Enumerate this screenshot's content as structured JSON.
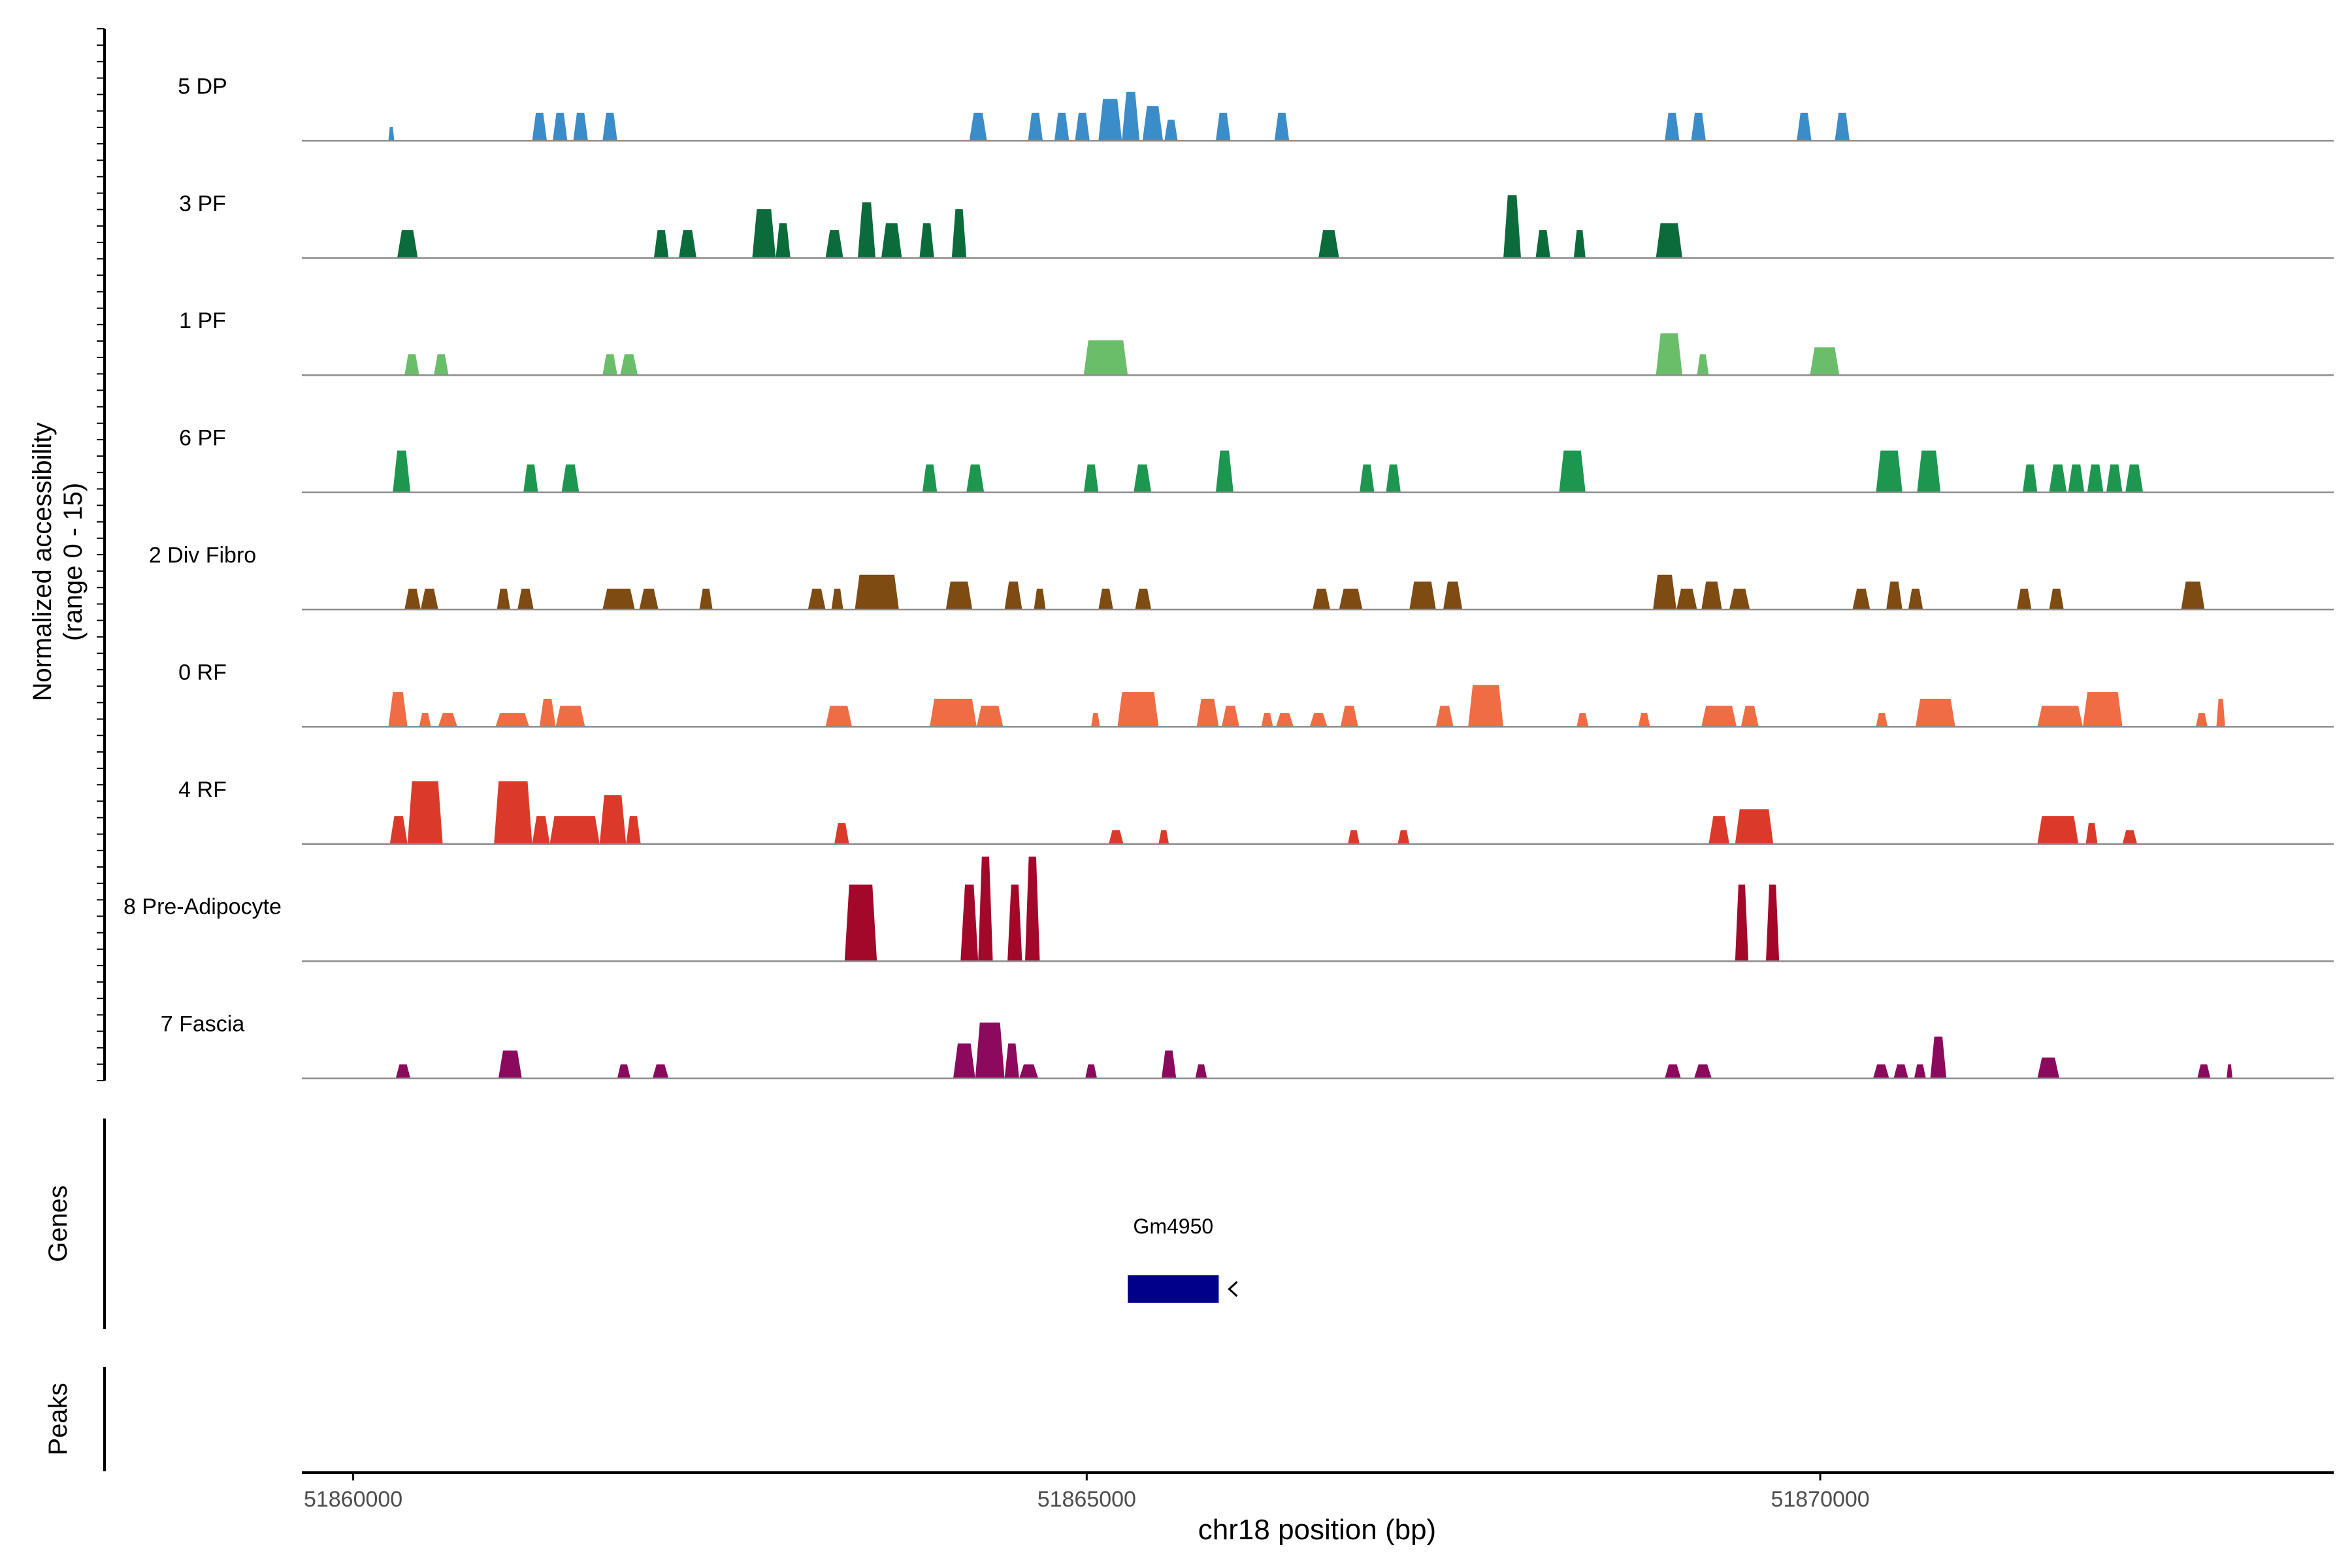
{
  "chart_data": {
    "type": "area",
    "chromosome": "chr18",
    "xlabel": "chr18 position (bp)",
    "ylabel_line1": "Normalized accessibility",
    "ylabel_line2": "(range 0 - 15)",
    "xlim": [
      51859650,
      51873500
    ],
    "ylim": [
      0,
      15
    ],
    "x_ticks": [
      51860000,
      51865000,
      51870000
    ],
    "x_tick_labels": [
      "51860000",
      "51865000",
      "51870000"
    ],
    "panel_labels": {
      "genes": "Genes",
      "peaks": "Peaks"
    },
    "series": [
      {
        "name": "5 DP",
        "color": "#3A8DC9",
        "peaks": [
          [
            51860240,
            51860280,
            2
          ],
          [
            51861220,
            51861320,
            4
          ],
          [
            51861360,
            51861460,
            4
          ],
          [
            51861500,
            51861600,
            4
          ],
          [
            51861700,
            51861800,
            4
          ],
          [
            51864200,
            51864320,
            4
          ],
          [
            51864600,
            51864700,
            4
          ],
          [
            51864780,
            51864880,
            4
          ],
          [
            51864920,
            51865020,
            4
          ],
          [
            51865080,
            51865240,
            6
          ],
          [
            51865240,
            51865360,
            7
          ],
          [
            51865380,
            51865520,
            5
          ],
          [
            51865530,
            51865620,
            3
          ],
          [
            51865880,
            51865980,
            4
          ],
          [
            51866280,
            51866380,
            4
          ],
          [
            51868940,
            51869040,
            4
          ],
          [
            51869120,
            51869220,
            4
          ],
          [
            51869840,
            51869940,
            4
          ],
          [
            51870100,
            51870200,
            4
          ]
        ]
      },
      {
        "name": "3 PF",
        "color": "#0B6B3A",
        "peaks": [
          [
            51860300,
            51860440,
            4
          ],
          [
            51862050,
            51862150,
            4
          ],
          [
            51862220,
            51862340,
            4
          ],
          [
            51862720,
            51862880,
            7
          ],
          [
            51862880,
            51862980,
            5
          ],
          [
            51863220,
            51863340,
            4
          ],
          [
            51863440,
            51863560,
            8
          ],
          [
            51863600,
            51863740,
            5
          ],
          [
            51863860,
            51863960,
            5
          ],
          [
            51864080,
            51864180,
            7
          ],
          [
            51866580,
            51866720,
            4
          ],
          [
            51867840,
            51867960,
            9
          ],
          [
            51868060,
            51868160,
            4
          ],
          [
            51868320,
            51868400,
            4
          ],
          [
            51868880,
            51869060,
            5
          ]
        ]
      },
      {
        "name": "1 PF",
        "color": "#6ABE6A",
        "peaks": [
          [
            51860350,
            51860450,
            3
          ],
          [
            51860550,
            51860650,
            3
          ],
          [
            51861700,
            51861800,
            3
          ],
          [
            51861820,
            51861940,
            3
          ],
          [
            51864980,
            51865280,
            5
          ],
          [
            51868880,
            51869060,
            6
          ],
          [
            51869160,
            51869240,
            3
          ],
          [
            51869930,
            51870130,
            4
          ]
        ]
      },
      {
        "name": "6 PF",
        "color": "#1D9650",
        "peaks": [
          [
            51860270,
            51860390,
            6
          ],
          [
            51861160,
            51861260,
            4
          ],
          [
            51861420,
            51861540,
            4
          ],
          [
            51863880,
            51863980,
            4
          ],
          [
            51864180,
            51864300,
            4
          ],
          [
            51864980,
            51865080,
            4
          ],
          [
            51865320,
            51865440,
            4
          ],
          [
            51865880,
            51866000,
            6
          ],
          [
            51866860,
            51866960,
            4
          ],
          [
            51867040,
            51867140,
            4
          ],
          [
            51868220,
            51868400,
            6
          ],
          [
            51870380,
            51870560,
            6
          ],
          [
            51870660,
            51870820,
            6
          ],
          [
            51871380,
            51871480,
            4
          ],
          [
            51871560,
            51871680,
            4
          ],
          [
            51871690,
            51871800,
            4
          ],
          [
            51871820,
            51871930,
            4
          ],
          [
            51871950,
            51872060,
            4
          ],
          [
            51872080,
            51872200,
            4
          ]
        ]
      },
      {
        "name": "2 Div Fibro",
        "color": "#7E4B12",
        "peaks": [
          [
            51860350,
            51860460,
            3
          ],
          [
            51860460,
            51860580,
            3
          ],
          [
            51860980,
            51861070,
            3
          ],
          [
            51861120,
            51861230,
            3
          ],
          [
            51861700,
            51861920,
            3
          ],
          [
            51861950,
            51862080,
            3
          ],
          [
            51862360,
            51862450,
            3
          ],
          [
            51863100,
            51863220,
            3
          ],
          [
            51863260,
            51863340,
            3
          ],
          [
            51863420,
            51863720,
            5
          ],
          [
            51864040,
            51864220,
            4
          ],
          [
            51864440,
            51864560,
            4
          ],
          [
            51864640,
            51864720,
            3
          ],
          [
            51865080,
            51865180,
            3
          ],
          [
            51865330,
            51865440,
            3
          ],
          [
            51866540,
            51866660,
            3
          ],
          [
            51866720,
            51866880,
            3
          ],
          [
            51867200,
            51867380,
            4
          ],
          [
            51867430,
            51867560,
            4
          ],
          [
            51868860,
            51869020,
            5
          ],
          [
            51869020,
            51869160,
            3
          ],
          [
            51869190,
            51869330,
            4
          ],
          [
            51869380,
            51869520,
            3
          ],
          [
            51870220,
            51870340,
            3
          ],
          [
            51870450,
            51870560,
            4
          ],
          [
            51870600,
            51870700,
            3
          ],
          [
            51871340,
            51871440,
            3
          ],
          [
            51871560,
            51871660,
            3
          ],
          [
            51872460,
            51872620,
            4
          ]
        ]
      },
      {
        "name": "0 RF",
        "color": "#EF6C45",
        "peaks": [
          [
            51860240,
            51860370,
            5
          ],
          [
            51860450,
            51860530,
            2
          ],
          [
            51860580,
            51860710,
            2
          ],
          [
            51860970,
            51861200,
            2
          ],
          [
            51861270,
            51861380,
            4
          ],
          [
            51861380,
            51861580,
            3
          ],
          [
            51863220,
            51863400,
            3
          ],
          [
            51863930,
            51864250,
            4
          ],
          [
            51864250,
            51864430,
            3
          ],
          [
            51865030,
            51865090,
            2
          ],
          [
            51865210,
            51865490,
            5
          ],
          [
            51865750,
            51865900,
            4
          ],
          [
            51865920,
            51866040,
            3
          ],
          [
            51866190,
            51866270,
            2
          ],
          [
            51866290,
            51866410,
            2
          ],
          [
            51866520,
            51866640,
            2
          ],
          [
            51866730,
            51866850,
            3
          ],
          [
            51867380,
            51867500,
            3
          ],
          [
            51867600,
            51867840,
            6
          ],
          [
            51868340,
            51868420,
            2
          ],
          [
            51868760,
            51868840,
            2
          ],
          [
            51869190,
            51869430,
            3
          ],
          [
            51869460,
            51869580,
            3
          ],
          [
            51870380,
            51870460,
            2
          ],
          [
            51870650,
            51870920,
            4
          ],
          [
            51871480,
            51871790,
            3
          ],
          [
            51871790,
            51872060,
            5
          ],
          [
            51872560,
            51872640,
            2
          ],
          [
            51872700,
            51872760,
            4
          ]
        ]
      },
      {
        "name": "4 RF",
        "color": "#DB3A2A",
        "peaks": [
          [
            51860250,
            51860370,
            4
          ],
          [
            51860370,
            51860610,
            9
          ],
          [
            51860960,
            51861220,
            9
          ],
          [
            51861220,
            51861340,
            4
          ],
          [
            51861340,
            51861680,
            4
          ],
          [
            51861680,
            51861860,
            7
          ],
          [
            51861860,
            51861960,
            4
          ],
          [
            51863280,
            51863380,
            3
          ],
          [
            51865150,
            51865250,
            2
          ],
          [
            51865490,
            51865560,
            2
          ],
          [
            51866780,
            51866860,
            2
          ],
          [
            51867120,
            51867200,
            2
          ],
          [
            51869240,
            51869380,
            4
          ],
          [
            51869420,
            51869680,
            5
          ],
          [
            51871480,
            51871760,
            4
          ],
          [
            51871810,
            51871890,
            3
          ],
          [
            51872060,
            51872160,
            2
          ]
        ]
      },
      {
        "name": "8 Pre-Adipocyte",
        "color": "#A3082A",
        "peaks": [
          [
            51863350,
            51863570,
            11
          ],
          [
            51864140,
            51864260,
            11
          ],
          [
            51864260,
            51864360,
            15
          ],
          [
            51864460,
            51864560,
            11
          ],
          [
            51864580,
            51864680,
            15
          ],
          [
            51869420,
            51869510,
            11
          ],
          [
            51869630,
            51869720,
            11
          ]
        ]
      },
      {
        "name": "7 Fascia",
        "color": "#8B0A5E",
        "peaks": [
          [
            51860290,
            51860390,
            2
          ],
          [
            51860990,
            51861150,
            4
          ],
          [
            51861800,
            51861890,
            2
          ],
          [
            51862040,
            51862150,
            2
          ],
          [
            51864090,
            51864240,
            5
          ],
          [
            51864240,
            51864440,
            8
          ],
          [
            51864440,
            51864540,
            5
          ],
          [
            51864540,
            51864670,
            2
          ],
          [
            51864990,
            51865070,
            2
          ],
          [
            51865510,
            51865610,
            4
          ],
          [
            51865740,
            51865820,
            2
          ],
          [
            51868940,
            51869050,
            2
          ],
          [
            51869140,
            51869260,
            2
          ],
          [
            51870360,
            51870470,
            2
          ],
          [
            51870500,
            51870600,
            2
          ],
          [
            51870640,
            51870720,
            2
          ],
          [
            51870750,
            51870860,
            6
          ],
          [
            51871480,
            51871630,
            3
          ],
          [
            51872570,
            51872660,
            2
          ],
          [
            51872770,
            51872810,
            2
          ]
        ]
      }
    ],
    "genes": [
      {
        "name": "Gm4950",
        "start": 51865280,
        "end": 51865900,
        "strand": "-",
        "color": "#00008B"
      }
    ]
  }
}
